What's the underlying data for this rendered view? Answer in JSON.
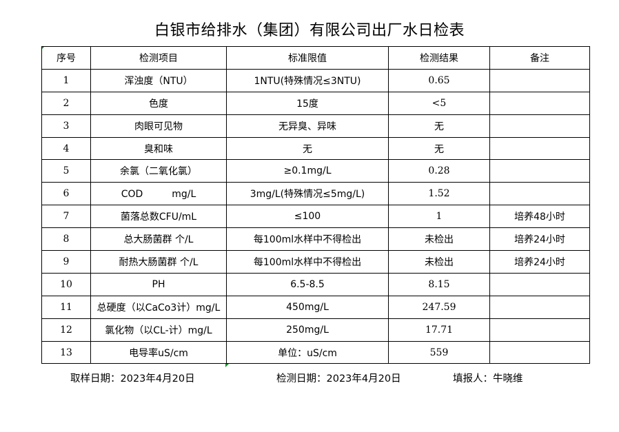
{
  "title": "白银市给排水（集团）有限公司出厂水日检表",
  "headers": [
    "序号",
    "检测项目",
    "标准限值",
    "检测结果",
    "备注"
  ],
  "rows": [
    [
      "1",
      "浑浊度（NTU）",
      "1NTU(特殊情况≤3NTU)",
      "0.65",
      ""
    ],
    [
      "2",
      "色度",
      "15度",
      "<5",
      ""
    ],
    [
      "3",
      "肉眼可见物",
      "无异臭、异味",
      "无",
      ""
    ],
    [
      "4",
      "臭和味",
      "无",
      "无",
      ""
    ],
    [
      "5",
      "余氯（二氧化氯）",
      "≥0.1mg/L",
      "0.28",
      ""
    ],
    [
      "6",
      "COD　　　mg/L",
      "3mg/L(特殊情况≤5mg/L)",
      "1.52",
      ""
    ],
    [
      "7",
      "菌落总数CFU/mL",
      "≤100",
      "1",
      "培养48小时"
    ],
    [
      "8",
      "总大肠菌群 个/L",
      "每100ml水样中不得检出",
      "未检出",
      "培养24小时"
    ],
    [
      "9",
      "耐热大肠菌群 个/L",
      "每100ml水样中不得检出",
      "未检出",
      "培养24小时"
    ],
    [
      "10",
      "PH",
      "6.5-8.5",
      "8.15",
      ""
    ],
    [
      "11",
      "总硬度（以CaCo3计）mg/L",
      "450mg/L",
      "247.59",
      ""
    ],
    [
      "12",
      "氯化物（以CL-计）mg/L",
      "250mg/L",
      "17.71",
      ""
    ],
    [
      "13",
      "电导率uS/cm",
      "单位：uS/cm",
      "559",
      ""
    ]
  ],
  "footer": {
    "sampling_date": "取样日期：2023年4月20日",
    "test_date": "检测日期：2023年4月20日",
    "reporter": "填报人：牛晓维"
  }
}
